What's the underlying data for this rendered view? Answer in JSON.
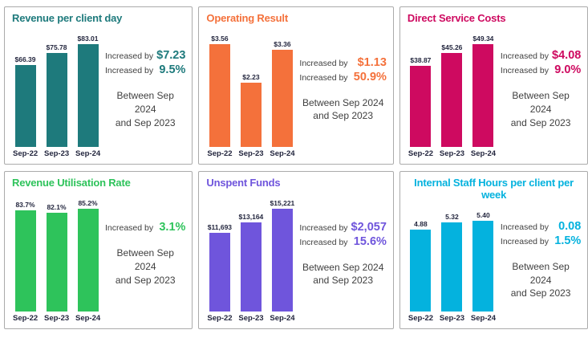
{
  "theme": {
    "background": "#ffffff",
    "panel_border": "#ababab",
    "value_text": "#23263e",
    "caption_text": "#404040"
  },
  "chart_data": [
    {
      "type": "bar",
      "title": "Revenue per client day",
      "color": "#1e7a7c",
      "categories": [
        "Sep-22",
        "Sep-23",
        "Sep-24"
      ],
      "values": [
        66.39,
        75.78,
        83.01
      ],
      "value_labels": [
        "$66.39",
        "$75.78",
        "$83.01"
      ],
      "grid": false,
      "axes": "hidden",
      "annotations": {
        "increase_lines": [
          {
            "label": "Increased by",
            "value": "$7.23"
          },
          {
            "label": "Increased by",
            "value": "9.5%"
          }
        ],
        "period_lines": [
          "Between Sep 2024",
          "and Sep 2023"
        ]
      }
    },
    {
      "type": "bar",
      "title": "Operating Result",
      "color": "#f4713b",
      "categories": [
        "Sep-22",
        "Sep-23",
        "Sep-24"
      ],
      "values": [
        3.56,
        2.23,
        3.36
      ],
      "value_labels": [
        "$3.56",
        "$2.23",
        "$3.36"
      ],
      "grid": false,
      "axes": "hidden",
      "annotations": {
        "increase_lines": [
          {
            "label": "Increased by",
            "value": "$1.13"
          },
          {
            "label": "Increased by",
            "value": "50.9%"
          }
        ],
        "period_lines": [
          "Between Sep 2024",
          "and Sep 2023"
        ]
      }
    },
    {
      "type": "bar",
      "title": "Direct Service Costs",
      "color": "#ce0a60",
      "categories": [
        "Sep-22",
        "Sep-23",
        "Sep-24"
      ],
      "values": [
        38.87,
        45.26,
        49.34
      ],
      "value_labels": [
        "$38.87",
        "$45.26",
        "$49.34"
      ],
      "grid": false,
      "axes": "hidden",
      "annotations": {
        "increase_lines": [
          {
            "label": "Increased by",
            "value": "$4.08"
          },
          {
            "label": "Increased by",
            "value": "9.0%"
          }
        ],
        "period_lines": [
          "Between Sep 2024",
          "and Sep 2023"
        ]
      }
    },
    {
      "type": "bar",
      "title": "Revenue Utilisation Rate",
      "color": "#2ec35b",
      "categories": [
        "Sep-22",
        "Sep-23",
        "Sep-24"
      ],
      "values": [
        83.7,
        82.1,
        85.2
      ],
      "value_labels": [
        "83.7%",
        "82.1%",
        "85.2%"
      ],
      "grid": false,
      "axes": "hidden",
      "annotations": {
        "increase_lines": [
          {
            "label": "Increased by",
            "value": "3.1%"
          }
        ],
        "period_lines": [
          "Between Sep 2024",
          "and Sep 2023"
        ]
      }
    },
    {
      "type": "bar",
      "title": "Unspent Funds",
      "color": "#6f55dc",
      "categories": [
        "Sep-22",
        "Sep-23",
        "Sep-24"
      ],
      "values": [
        11693,
        13164,
        15221
      ],
      "value_labels": [
        "$11,693",
        "$13,164",
        "$15,221"
      ],
      "grid": false,
      "axes": "hidden",
      "annotations": {
        "increase_lines": [
          {
            "label": "Increased by",
            "value": "$2,057"
          },
          {
            "label": "Increased by",
            "value": "15.6%"
          }
        ],
        "period_lines": [
          "Between Sep 2024",
          "and Sep 2023"
        ]
      }
    },
    {
      "type": "bar",
      "title": "Internal Staff Hours per client per week",
      "color": "#04b2de",
      "categories": [
        "Sep-22",
        "Sep-23",
        "Sep-24"
      ],
      "values": [
        4.88,
        5.32,
        5.4
      ],
      "value_labels": [
        "4.88",
        "5.32",
        "5.40"
      ],
      "grid": false,
      "axes": "hidden",
      "annotations": {
        "increase_lines": [
          {
            "label": "Increased by",
            "value": "0.08"
          },
          {
            "label": "Increased by",
            "value": "1.5%"
          }
        ],
        "period_lines": [
          "Between Sep 2024",
          "and Sep 2023"
        ]
      }
    }
  ]
}
